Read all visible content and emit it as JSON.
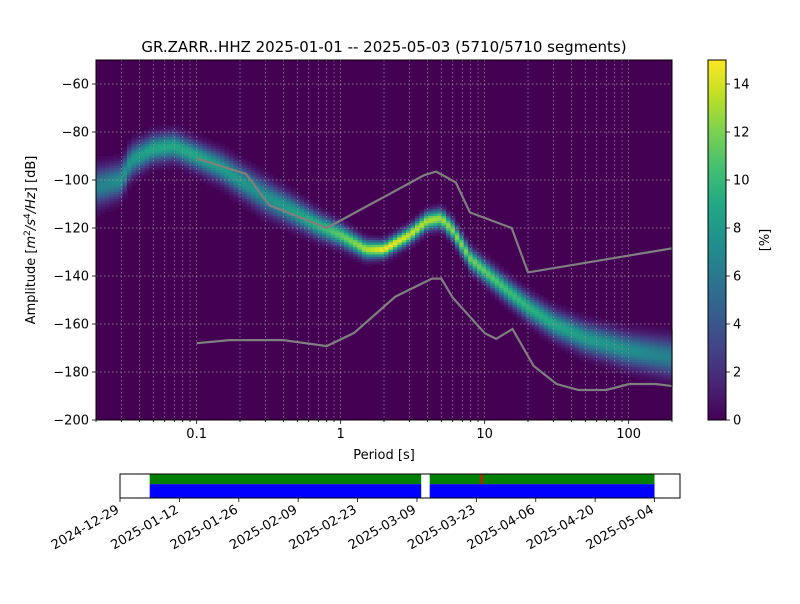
{
  "chart_data": [
    {
      "type": "heatmap",
      "title": "GR.ZARR..HHZ   2025-01-01 -- 2025-05-03  (5710/5710 segments)",
      "xlabel": "Period [s]",
      "ylabel_parts": {
        "pre": "Amplitude [",
        "m": "m",
        "exp2": "2",
        "slash1": "/",
        "s": "s",
        "exp4": "4",
        "slash2": "/",
        "hz": "Hz",
        "post": "] [dB]"
      },
      "x_scale": "log",
      "xlim": [
        0.02,
        200
      ],
      "ylim": [
        -200,
        -50
      ],
      "x_ticks": [
        {
          "value": 0.1,
          "label": "0.1"
        },
        {
          "value": 1,
          "label": "1"
        },
        {
          "value": 10,
          "label": "10"
        },
        {
          "value": 100,
          "label": "100"
        }
      ],
      "y_ticks": [
        {
          "value": -60,
          "label": "−60"
        },
        {
          "value": -80,
          "label": "−80"
        },
        {
          "value": -100,
          "label": "−100"
        },
        {
          "value": -120,
          "label": "−120"
        },
        {
          "value": -140,
          "label": "−140"
        },
        {
          "value": -160,
          "label": "−160"
        },
        {
          "value": -180,
          "label": "−180"
        },
        {
          "value": -200,
          "label": "−200"
        }
      ],
      "grid": true,
      "colormap": "viridis",
      "background_color": "#440154",
      "colorbar": {
        "label": "[%]",
        "range": [
          0,
          15
        ],
        "ticks": [
          {
            "value": 0,
            "label": "0"
          },
          {
            "value": 2,
            "label": "2"
          },
          {
            "value": 4,
            "label": "4"
          },
          {
            "value": 6,
            "label": "6"
          },
          {
            "value": 8,
            "label": "8"
          },
          {
            "value": 10,
            "label": "10"
          },
          {
            "value": 12,
            "label": "12"
          },
          {
            "value": 14,
            "label": "14"
          }
        ]
      },
      "psd_mode": [
        [
          0.02,
          -103
        ],
        [
          0.03,
          -100
        ],
        [
          0.035,
          -92
        ],
        [
          0.05,
          -87
        ],
        [
          0.07,
          -86
        ],
        [
          0.1,
          -90
        ],
        [
          0.15,
          -95
        ],
        [
          0.2,
          -100
        ],
        [
          0.3,
          -107
        ],
        [
          0.5,
          -114
        ],
        [
          0.7,
          -119
        ],
        [
          1.0,
          -123
        ],
        [
          1.5,
          -129
        ],
        [
          2.0,
          -129
        ],
        [
          3.0,
          -123
        ],
        [
          4.0,
          -117
        ],
        [
          5.0,
          -116
        ],
        [
          6.0,
          -121
        ],
        [
          8.0,
          -133
        ],
        [
          10,
          -138
        ],
        [
          15,
          -147
        ],
        [
          20,
          -153
        ],
        [
          30,
          -160
        ],
        [
          50,
          -166
        ],
        [
          100,
          -171
        ],
        [
          200,
          -174
        ]
      ],
      "psd_spread": [
        [
          0.02,
          14
        ],
        [
          0.03,
          12
        ],
        [
          0.05,
          10
        ],
        [
          0.1,
          10
        ],
        [
          0.3,
          12
        ],
        [
          1.0,
          8
        ],
        [
          2.0,
          6
        ],
        [
          5.0,
          7
        ],
        [
          10,
          8
        ],
        [
          30,
          10
        ],
        [
          100,
          12
        ],
        [
          200,
          14
        ]
      ],
      "noise_models": [
        {
          "name": "high",
          "color": "#7f7f7f",
          "points": [
            [
              0.1,
              -91
            ],
            [
              0.22,
              -97.5
            ],
            [
              0.32,
              -110.5
            ],
            [
              0.8,
              -120
            ],
            [
              3.8,
              -98
            ],
            [
              4.6,
              -96.5
            ],
            [
              6.3,
              -101
            ],
            [
              7.9,
              -113.5
            ],
            [
              15.4,
              -120
            ],
            [
              20,
              -138.5
            ],
            [
              354.8,
              -126
            ],
            [
              10000,
              -80
            ]
          ]
        },
        {
          "name": "low",
          "color": "#7f7f7f",
          "points": [
            [
              0.1,
              -168
            ],
            [
              0.17,
              -166.7
            ],
            [
              0.4,
              -166.7
            ],
            [
              0.8,
              -169.2
            ],
            [
              1.24,
              -163.7
            ],
            [
              2.4,
              -148.6
            ],
            [
              4.3,
              -141.1
            ],
            [
              5.0,
              -141.1
            ],
            [
              6.0,
              -149.0
            ],
            [
              10,
              -163.8
            ],
            [
              12,
              -166.2
            ],
            [
              15.6,
              -162.1
            ],
            [
              21.9,
              -177.5
            ],
            [
              31.6,
              -185.0
            ],
            [
              45,
              -187.5
            ],
            [
              70,
              -187.5
            ],
            [
              101,
              -185.0
            ],
            [
              154,
              -185.0
            ],
            [
              328,
              -187.5
            ]
          ]
        }
      ]
    },
    {
      "type": "timeline",
      "x_ticks": [
        {
          "date": "2024-12-29",
          "label": "2024-12-29"
        },
        {
          "date": "2025-01-12",
          "label": "2025-01-12"
        },
        {
          "date": "2025-01-26",
          "label": "2025-01-26"
        },
        {
          "date": "2025-02-09",
          "label": "2025-02-09"
        },
        {
          "date": "2025-02-23",
          "label": "2025-02-23"
        },
        {
          "date": "2025-03-09",
          "label": "2025-03-09"
        },
        {
          "date": "2025-03-23",
          "label": "2025-03-23"
        },
        {
          "date": "2025-04-06",
          "label": "2025-04-06"
        },
        {
          "date": "2025-04-20",
          "label": "2025-04-20"
        },
        {
          "date": "2025-05-04",
          "label": "2025-05-04"
        }
      ],
      "xlim": [
        "2024-12-29",
        "2025-05-10"
      ],
      "coverage": [
        {
          "start": "2025-01-05",
          "end": "2025-03-10",
          "color": "#0000ff",
          "row": "bottom"
        },
        {
          "start": "2025-03-12",
          "end": "2025-05-04",
          "color": "#0000ff",
          "row": "bottom"
        },
        {
          "start": "2025-01-05",
          "end": "2025-03-10",
          "color": "#008000",
          "row": "top"
        },
        {
          "start": "2025-03-12",
          "end": "2025-05-04",
          "color": "#008000",
          "row": "top"
        },
        {
          "start": "2025-03-24",
          "end": "2025-03-24",
          "color": "#ff0000",
          "row": "top"
        }
      ]
    }
  ]
}
